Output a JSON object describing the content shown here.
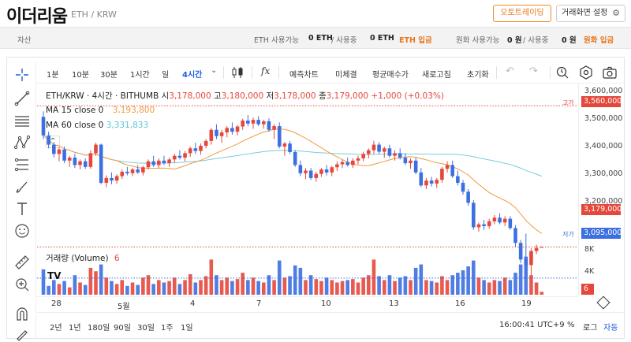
{
  "header": {
    "title": "이더리움",
    "pair": "ETH / KRW",
    "auto_trade_btn": "오토트레이딩",
    "settings_btn": "거래화면 설정"
  },
  "balance": {
    "assets_label": "자산",
    "eth_avail_label": "ETH 사용가능",
    "eth_avail_value": "0 ETH",
    "eth_used_sep": "/ 사용중",
    "eth_used_value": "0 ETH",
    "eth_deposit": "ETH 입금",
    "krw_avail_label": "원화 사용가능",
    "krw_avail_value": "0 원",
    "krw_used_sep": "/ 사용중",
    "krw_used_value": "0 원",
    "krw_deposit": "원화 입금"
  },
  "toolbar": {
    "intervals": [
      "1분",
      "10분",
      "30분",
      "1시간",
      "일",
      "4시간"
    ],
    "selected_interval": "4시간",
    "indicator_label": "fx",
    "predict": "예측차트",
    "unfilled": "미체결",
    "avg_price": "평균매수가",
    "refresh": "새로고침",
    "reset": "초기화"
  },
  "legend": {
    "symbol": "ETH/KRW · 4시간 · BITHUMB",
    "open_label": "시",
    "open": "3,178,000",
    "high_label": "고",
    "high": "3,180,000",
    "low_label": "저",
    "low": "3,178,000",
    "close_label": "종",
    "close": "3,179,000",
    "change": "+1,000 (+0.03%)",
    "ma15_label": "MA 15 close 0",
    "ma15_value": "3,193,800",
    "ma60_label": "MA 60 close 0",
    "ma60_value": "3,331,833",
    "volume_label": "거래량 (Volume)",
    "volume_value": "6"
  },
  "price_axis": {
    "ticks": [
      "3,600,000",
      "3,500,000",
      "3,400,000",
      "3,300,000",
      "3,200,000"
    ],
    "high_tag_label": "고가",
    "high_tag": "3,560,000",
    "last_tag": "3,179,000",
    "low_tag_label": "저가",
    "low_tag": "3,095,000",
    "volume_ticks": [
      "8K",
      "4K"
    ],
    "volume_tag": "6"
  },
  "x_axis": {
    "labels": [
      "28",
      "5월",
      "4",
      "7",
      "10",
      "13",
      "16",
      "19"
    ]
  },
  "bottom": {
    "ranges": [
      "2년",
      "1년",
      "180일",
      "90일",
      "30일",
      "1주",
      "1일"
    ],
    "time": "16:00:41 UTC+9",
    "percent": "%",
    "log": "로그",
    "auto": "자동"
  },
  "colors": {
    "up": "#e5473c",
    "down": "#3c6fe0",
    "ma15": "#f19a3e",
    "ma60": "#7ccbe0",
    "accent": "#1b5fde",
    "orange": "#e8751a"
  },
  "chart_data": {
    "type": "candlestick",
    "interval": "4시간",
    "ylim": [
      3050000,
      3620000
    ],
    "candles": [
      [
        3530000,
        3545000,
        3470000,
        3480000
      ],
      [
        3480000,
        3490000,
        3445000,
        3455000
      ],
      [
        3455000,
        3462000,
        3420000,
        3430000
      ],
      [
        3430000,
        3448000,
        3410000,
        3442000
      ],
      [
        3442000,
        3450000,
        3405000,
        3412000
      ],
      [
        3412000,
        3425000,
        3395000,
        3420000
      ],
      [
        3420000,
        3430000,
        3392000,
        3400000
      ],
      [
        3400000,
        3415000,
        3388000,
        3410000
      ],
      [
        3410000,
        3418000,
        3390000,
        3395000
      ],
      [
        3395000,
        3440000,
        3390000,
        3432000
      ],
      [
        3432000,
        3460000,
        3425000,
        3455000
      ],
      [
        3455000,
        3458000,
        3348000,
        3352000
      ],
      [
        3352000,
        3372000,
        3340000,
        3365000
      ],
      [
        3365000,
        3380000,
        3348000,
        3358000
      ],
      [
        3358000,
        3375000,
        3350000,
        3370000
      ],
      [
        3370000,
        3388000,
        3362000,
        3382000
      ],
      [
        3382000,
        3395000,
        3372000,
        3378000
      ],
      [
        3378000,
        3392000,
        3370000,
        3388000
      ],
      [
        3388000,
        3400000,
        3376000,
        3380000
      ],
      [
        3380000,
        3398000,
        3372000,
        3394000
      ],
      [
        3394000,
        3415000,
        3388000,
        3410000
      ],
      [
        3410000,
        3425000,
        3395000,
        3400000
      ],
      [
        3400000,
        3418000,
        3392000,
        3412000
      ],
      [
        3412000,
        3425000,
        3400000,
        3405000
      ],
      [
        3405000,
        3420000,
        3395000,
        3415000
      ],
      [
        3415000,
        3430000,
        3405000,
        3425000
      ],
      [
        3425000,
        3440000,
        3415000,
        3420000
      ],
      [
        3420000,
        3438000,
        3410000,
        3432000
      ],
      [
        3432000,
        3450000,
        3422000,
        3445000
      ],
      [
        3445000,
        3460000,
        3430000,
        3438000
      ],
      [
        3438000,
        3458000,
        3428000,
        3452000
      ],
      [
        3452000,
        3470000,
        3445000,
        3465000
      ],
      [
        3465000,
        3500000,
        3455000,
        3495000
      ],
      [
        3495000,
        3510000,
        3470000,
        3478000
      ],
      [
        3478000,
        3495000,
        3460000,
        3488000
      ],
      [
        3488000,
        3505000,
        3475000,
        3500000
      ],
      [
        3500000,
        3515000,
        3482000,
        3490000
      ],
      [
        3490000,
        3508000,
        3480000,
        3504000
      ],
      [
        3504000,
        3525000,
        3495000,
        3520000
      ],
      [
        3520000,
        3535000,
        3505000,
        3512000
      ],
      [
        3512000,
        3528000,
        3498000,
        3522000
      ],
      [
        3522000,
        3532000,
        3505000,
        3510000
      ],
      [
        3510000,
        3522000,
        3498000,
        3518000
      ],
      [
        3518000,
        3526000,
        3490000,
        3495000
      ],
      [
        3495000,
        3510000,
        3470000,
        3505000
      ],
      [
        3505000,
        3515000,
        3445000,
        3450000
      ],
      [
        3450000,
        3462000,
        3425000,
        3458000
      ],
      [
        3458000,
        3465000,
        3430000,
        3435000
      ],
      [
        3435000,
        3440000,
        3395000,
        3400000
      ],
      [
        3400000,
        3412000,
        3370000,
        3378000
      ],
      [
        3378000,
        3392000,
        3362000,
        3385000
      ],
      [
        3385000,
        3392000,
        3360000,
        3365000
      ],
      [
        3365000,
        3382000,
        3355000,
        3376000
      ],
      [
        3376000,
        3392000,
        3368000,
        3388000
      ],
      [
        3388000,
        3400000,
        3372000,
        3380000
      ],
      [
        3380000,
        3398000,
        3370000,
        3394000
      ],
      [
        3394000,
        3410000,
        3384000,
        3402000
      ],
      [
        3402000,
        3415000,
        3392000,
        3408000
      ],
      [
        3408000,
        3420000,
        3396000,
        3400000
      ],
      [
        3400000,
        3418000,
        3392000,
        3412000
      ],
      [
        3412000,
        3425000,
        3402000,
        3418000
      ],
      [
        3418000,
        3436000,
        3410000,
        3430000
      ],
      [
        3430000,
        3445000,
        3418000,
        3440000
      ],
      [
        3440000,
        3465000,
        3430000,
        3455000
      ],
      [
        3455000,
        3462000,
        3430000,
        3436000
      ],
      [
        3436000,
        3450000,
        3420000,
        3445000
      ],
      [
        3445000,
        3455000,
        3420000,
        3425000
      ],
      [
        3425000,
        3440000,
        3412000,
        3432000
      ],
      [
        3432000,
        3445000,
        3415000,
        3420000
      ],
      [
        3420000,
        3432000,
        3400000,
        3405000
      ],
      [
        3405000,
        3418000,
        3390000,
        3412000
      ],
      [
        3412000,
        3420000,
        3375000,
        3380000
      ],
      [
        3380000,
        3392000,
        3340000,
        3345000
      ],
      [
        3345000,
        3365000,
        3335000,
        3358000
      ],
      [
        3358000,
        3368000,
        3342000,
        3350000
      ],
      [
        3350000,
        3365000,
        3338000,
        3360000
      ],
      [
        3360000,
        3395000,
        3352000,
        3390000
      ],
      [
        3390000,
        3410000,
        3380000,
        3400000
      ],
      [
        3400000,
        3412000,
        3365000,
        3370000
      ],
      [
        3370000,
        3385000,
        3345000,
        3352000
      ],
      [
        3352000,
        3360000,
        3320000,
        3328000
      ],
      [
        3328000,
        3335000,
        3290000,
        3298000
      ],
      [
        3298000,
        3305000,
        3225000,
        3232000
      ],
      [
        3232000,
        3245000,
        3220000,
        3240000
      ],
      [
        3240000,
        3252000,
        3225000,
        3235000
      ],
      [
        3235000,
        3255000,
        3228000,
        3248000
      ],
      [
        3248000,
        3265000,
        3240000,
        3258000
      ],
      [
        3258000,
        3270000,
        3240000,
        3245000
      ],
      [
        3245000,
        3262000,
        3235000,
        3255000
      ],
      [
        3255000,
        3262000,
        3225000,
        3230000
      ],
      [
        3230000,
        3238000,
        3180000,
        3190000
      ],
      [
        3190000,
        3198000,
        3135000,
        3145000
      ],
      [
        3145000,
        3215000,
        3095000,
        3130000
      ],
      [
        3130000,
        3175000,
        3102000,
        3168000
      ],
      [
        3168000,
        3185000,
        3160000,
        3176000
      ],
      [
        3178000,
        3180000,
        3178000,
        3179000
      ]
    ],
    "volumes": [
      52,
      18,
      30,
      22,
      28,
      15,
      40,
      25,
      20,
      55,
      48,
      62,
      35,
      28,
      22,
      30,
      18,
      25,
      20,
      35,
      40,
      22,
      30,
      25,
      28,
      35,
      22,
      30,
      42,
      25,
      30,
      38,
      72,
      40,
      30,
      35,
      28,
      32,
      45,
      30,
      35,
      28,
      25,
      40,
      30,
      70,
      35,
      38,
      60,
      55,
      30,
      40,
      32,
      28,
      35,
      30,
      25,
      28,
      30,
      32,
      25,
      35,
      40,
      72,
      38,
      30,
      40,
      28,
      35,
      38,
      30,
      55,
      62,
      30,
      28,
      25,
      38,
      30,
      40,
      45,
      50,
      58,
      70,
      35,
      30,
      25,
      30,
      28,
      35,
      30,
      45,
      62,
      78,
      40,
      25,
      6
    ],
    "volume_ylim": [
      0,
      9000
    ],
    "high_price": 3560000,
    "last_price": 3179000,
    "low_price": 3095000
  }
}
